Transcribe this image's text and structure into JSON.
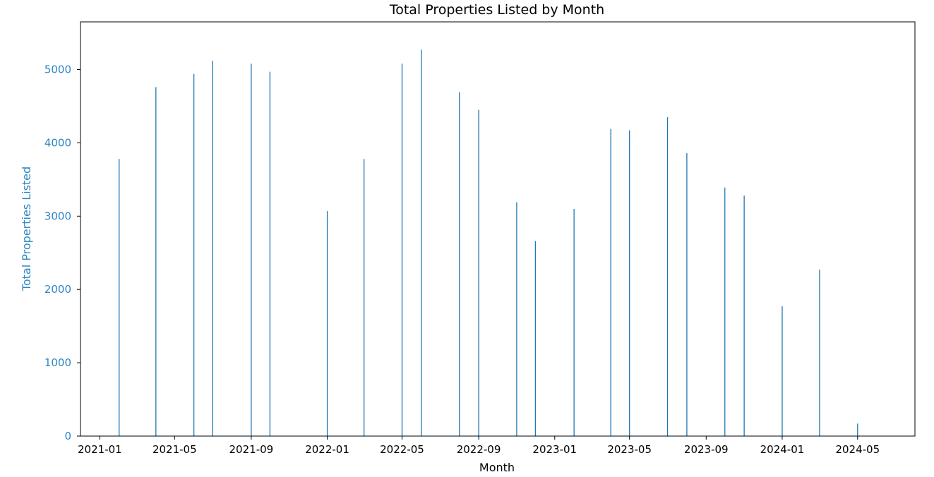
{
  "chart_data": {
    "type": "bar",
    "title": "Total Properties Listed by Month",
    "xlabel": "Month",
    "ylabel": "Total Properties Listed",
    "x_tick_labels": [
      "2021-01",
      "2021-05",
      "2021-09",
      "2022-01",
      "2022-05",
      "2022-09",
      "2023-01",
      "2023-05",
      "2023-09",
      "2024-01",
      "2024-05"
    ],
    "y_ticks": [
      0,
      1000,
      2000,
      3000,
      4000,
      5000
    ],
    "xlim": [
      "2020-12-01",
      "2024-08-01"
    ],
    "ylim": [
      0,
      5650
    ],
    "grid": false,
    "colors": {
      "bar": "#1f77b4",
      "ylabel": "#2e86c1",
      "ytick": "#2e86c1",
      "axis": "#000000"
    },
    "categories": [
      "2021-02",
      "2021-04",
      "2021-06",
      "2021-07",
      "2021-09",
      "2021-10",
      "2022-01",
      "2022-03",
      "2022-05",
      "2022-06",
      "2022-08",
      "2022-09",
      "2022-11",
      "2022-12",
      "2023-02",
      "2023-04",
      "2023-05",
      "2023-07",
      "2023-08",
      "2023-10",
      "2023-11",
      "2024-01",
      "2024-03",
      "2024-05"
    ],
    "values": [
      3780,
      4760,
      4940,
      5120,
      5080,
      4970,
      3070,
      3780,
      5080,
      5270,
      4690,
      4450,
      3190,
      2660,
      3100,
      4190,
      4170,
      4350,
      3860,
      3390,
      3280,
      1770,
      2270,
      170
    ]
  }
}
